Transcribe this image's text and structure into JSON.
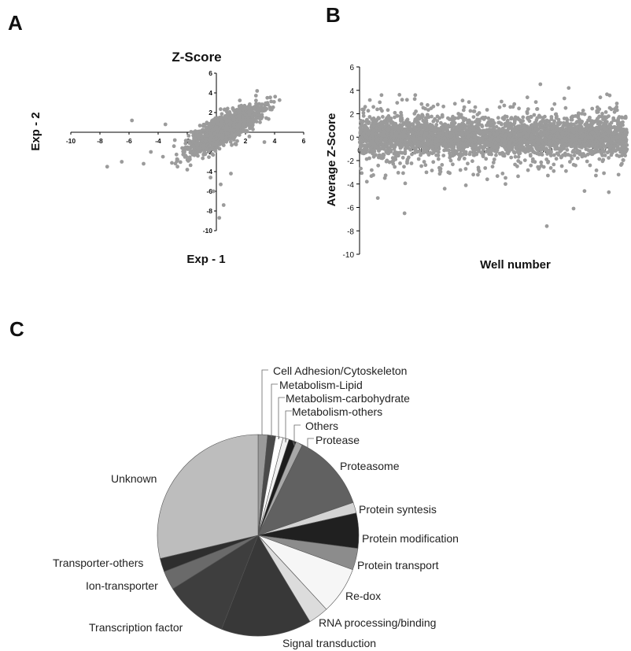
{
  "panels": {
    "a": "A",
    "b": "B",
    "c": "C"
  },
  "chart_data": [
    {
      "type": "scatter",
      "panel": "A",
      "title": "Z-Score",
      "xlabel": "Exp - 1",
      "ylabel": "Exp - 2",
      "xlim": [
        -10,
        6
      ],
      "ylim": [
        -10,
        6
      ],
      "xticks": [
        -10,
        -8,
        -6,
        -4,
        -2,
        0,
        2,
        4,
        6
      ],
      "yticks": [
        -10,
        -8,
        -6,
        -4,
        -2,
        0,
        2,
        4,
        6
      ],
      "distribution": {
        "correlated": true,
        "center": [
          0.5,
          0.3
        ],
        "spread": 1.2
      },
      "outliers": [
        [
          -7.5,
          -3.5
        ],
        [
          -6.5,
          -3.0
        ],
        [
          -5.8,
          1.2
        ],
        [
          -5.0,
          -3.2
        ],
        [
          -4.5,
          -2.0
        ],
        [
          -3.5,
          0.8
        ],
        [
          -0.2,
          -6.0
        ],
        [
          0.2,
          -8.7
        ],
        [
          0.5,
          -7.4
        ],
        [
          0.3,
          -5.3
        ],
        [
          -0.4,
          -4.6
        ],
        [
          1.0,
          -4.2
        ],
        [
          3.5,
          3.5
        ],
        [
          3.3,
          -1.0
        ],
        [
          2.8,
          4.2
        ],
        [
          -2.0,
          -3.8
        ]
      ]
    },
    {
      "type": "scatter",
      "panel": "B",
      "xlabel": "Well number",
      "ylabel": "Average Z-Score",
      "xlim": [
        0,
        22000
      ],
      "ylim": [
        -10,
        6
      ],
      "xticks": [
        0,
        5000,
        10000,
        15000,
        20000
      ],
      "yticks": [
        -10,
        -8,
        -6,
        -4,
        -2,
        0,
        2,
        4,
        6
      ],
      "distribution": {
        "mean": 0,
        "band": [
          -1.6,
          1.8
        ]
      },
      "outliers": [
        [
          3700,
          -6.5
        ],
        [
          15400,
          -7.6
        ],
        [
          17600,
          -6.1
        ],
        [
          1500,
          -5.2
        ],
        [
          7000,
          -4.4
        ],
        [
          12000,
          -4.0
        ],
        [
          18500,
          -4.6
        ],
        [
          20500,
          -4.7
        ],
        [
          3500,
          3.2
        ],
        [
          17200,
          4.2
        ],
        [
          13800,
          3.4
        ],
        [
          9000,
          3.0
        ],
        [
          600,
          -3.8
        ],
        [
          21300,
          -3.2
        ],
        [
          5500,
          -3.0
        ],
        [
          10500,
          -3.6
        ],
        [
          14500,
          3.0
        ],
        [
          19800,
          3.4
        ]
      ]
    },
    {
      "type": "pie",
      "panel": "C",
      "slices": [
        {
          "label": "Cell Adhesion/Cytoskeleton",
          "value": 1.4,
          "color": "#9a9a9a"
        },
        {
          "label": "Metabolism-Lipid",
          "value": 1.2,
          "color": "#4a4a4a"
        },
        {
          "label": "Metabolism-carbohydrate",
          "value": 1.1,
          "color": "#ffffff"
        },
        {
          "label": "Metabolism-others",
          "value": 0.9,
          "color": "#f0f0f0"
        },
        {
          "label": "Others",
          "value": 1.1,
          "color": "#1c1c1c"
        },
        {
          "label": "Protease",
          "value": 1.0,
          "color": "#a8a8a8"
        },
        {
          "label": "Proteasome",
          "value": 11.5,
          "color": "#616161"
        },
        {
          "label": "Protein syntesis",
          "value": 1.6,
          "color": "#d4d4d4"
        },
        {
          "label": "Protein modification",
          "value": 5.2,
          "color": "#202020"
        },
        {
          "label": "Protein transport",
          "value": 3.2,
          "color": "#8c8c8c"
        },
        {
          "label": "Re-dox",
          "value": 7.0,
          "color": "#f6f6f6"
        },
        {
          "label": "RNA processing/binding",
          "value": 3.0,
          "color": "#dcdcdc"
        },
        {
          "label": "Signal transduction",
          "value": 13.4,
          "color": "#383838"
        },
        {
          "label": "Transcription factor",
          "value": 9.4,
          "color": "#3e3e3e"
        },
        {
          "label": "Ion-transporter",
          "value": 2.8,
          "color": "#6a6a6a"
        },
        {
          "label": "Transporter-others",
          "value": 2.0,
          "color": "#2e2e2e"
        },
        {
          "label": "Unknown",
          "value": 26.5,
          "color": "#bdbdbd"
        }
      ]
    }
  ]
}
